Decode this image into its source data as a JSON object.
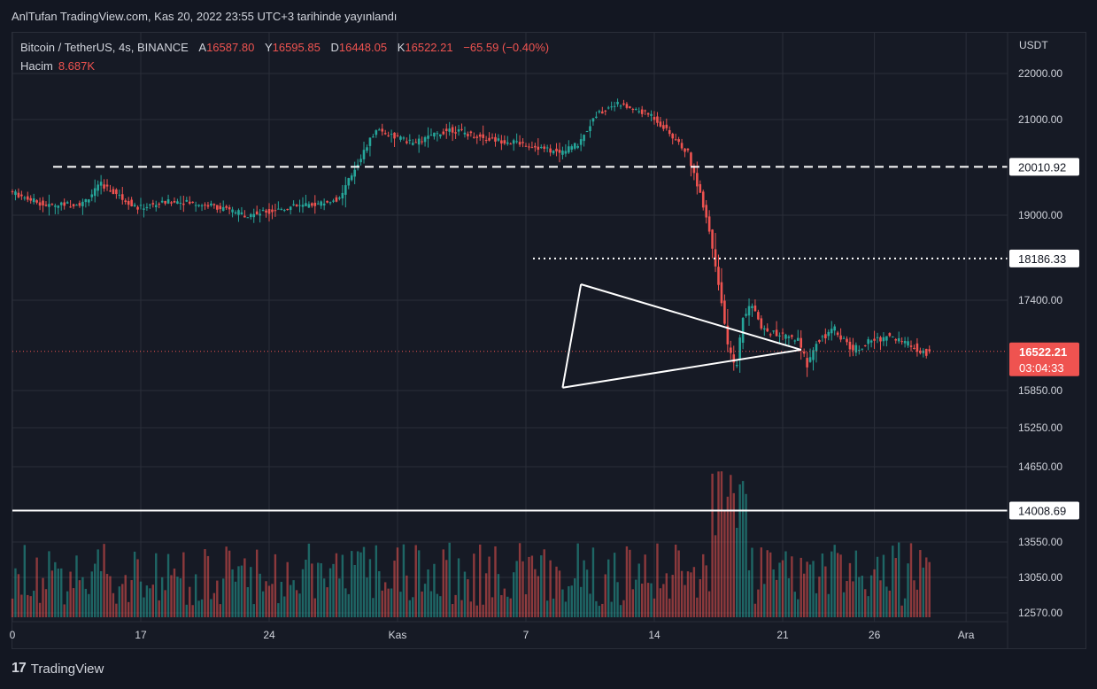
{
  "header": {
    "published_by": "AnlTufan TradingView.com, Kas 20, 2022 23:55 UTC+3 tarihinde yayınlandı"
  },
  "legend": {
    "symbol": "Bitcoin / TetherUS, 4s, BINANCE",
    "open_label": "A",
    "open": "16587.80",
    "high_label": "Y",
    "high": "16595.85",
    "low_label": "D",
    "low": "16448.05",
    "close_label": "K",
    "close": "16522.21",
    "change": "−65.59 (−0.40%)",
    "volume_label": "Hacim",
    "volume": "8.687K"
  },
  "footer": {
    "brand": "TradingView"
  },
  "colors": {
    "up": "#26a69a",
    "down": "#ef5350",
    "background": "#131722",
    "grid": "#2a2e39",
    "price_tag": "#ef5350"
  },
  "chart_data": {
    "type": "candlestick",
    "currency_label": "USDT",
    "y_ticks": [
      "22000.00",
      "21000.00",
      "19000.00",
      "17400.00",
      "15850.00",
      "15250.00",
      "14650.00",
      "13550.00",
      "13050.00",
      "12570.00"
    ],
    "x_ticks": [
      "0",
      "17",
      "24",
      "Kas",
      "7",
      "14",
      "21",
      "26",
      "Ara"
    ],
    "horizontal_levels": [
      {
        "price": "20010.92",
        "style": "dashed"
      },
      {
        "price": "18186.33",
        "style": "dotted"
      },
      {
        "price": "14008.69",
        "style": "solid"
      }
    ],
    "current_price": "16522.21",
    "countdown": "03:04:33",
    "triangle_pattern": {
      "upper": [
        [
          "Kas 10",
          17700
        ],
        [
          "Kas 22",
          16550
        ]
      ],
      "lower": [
        [
          "Kas 9",
          15900
        ],
        [
          "Kas 22",
          16550
        ]
      ]
    }
  }
}
